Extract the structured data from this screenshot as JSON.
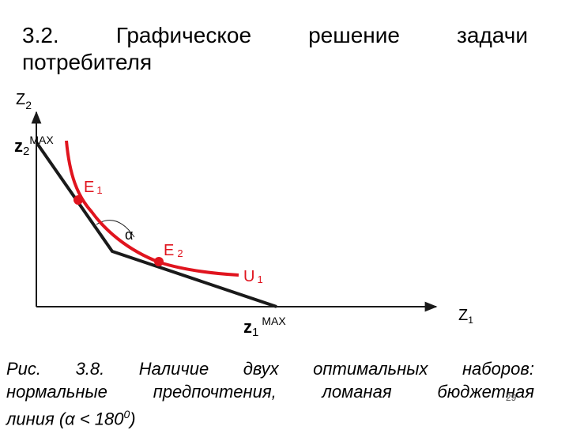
{
  "title": {
    "words_line1": [
      "3.2.",
      "Графическое",
      "решение",
      "задачи"
    ],
    "line2": "потребителя"
  },
  "diagram": {
    "y_axis_label": "Z",
    "y_axis_sub": "2",
    "x_axis_label": "Z",
    "x_axis_sub": "1",
    "z2max_main": "z",
    "z2max_sub": "2",
    "z2max_sup": "MAX",
    "z1max_main": "z",
    "z1max_sub": "1",
    "z1max_sup": "MAX",
    "e1_label": "E",
    "e1_sub": "1",
    "e2_label": "E",
    "e2_sub": "2",
    "u1_label": "U",
    "u1_sub": "1",
    "angle_label": "α",
    "curve_color": "#e0141e",
    "budget_color": "#1a1a1a"
  },
  "caption": {
    "line1_words": [
      "Рис.",
      "3.8.",
      "Наличие",
      "двух",
      "оптимальных",
      "наборов:"
    ],
    "line2_words": [
      "нормальные",
      "предпочтения,",
      "ломаная",
      "бюджетная"
    ],
    "line3_main": "линия (α < 180",
    "line3_sup": "0",
    "line3_end": ")"
  },
  "page_number": "29"
}
